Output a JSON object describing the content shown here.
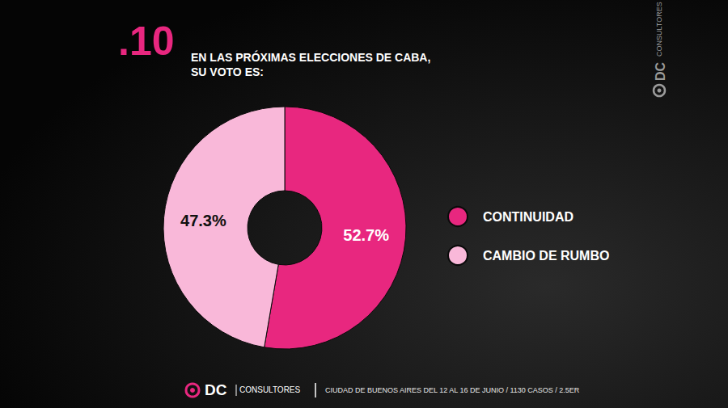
{
  "chart_data": {
    "type": "pie",
    "title": ".10",
    "subtitle": [
      "EN LAS PRÓXIMAS ELECCIONES DE CABA,",
      "SU VOTO ES:"
    ],
    "categories": [
      "CONTINUIDAD",
      "CAMBIO DE RUMBO"
    ],
    "values": [
      52.7,
      47.3
    ],
    "value_labels": [
      "52.7%",
      "47.3%"
    ],
    "colors": [
      "#e8277f",
      "#f9b8d9"
    ],
    "data_labels": true,
    "legend": "right"
  },
  "branding": {
    "logo": "DC",
    "name": "CONSULTORES",
    "footer": "CIUDAD DE BUENOS AIRES DEL 12 AL 16 DE JUNIO / 1130 CASOS / 2.5ER"
  }
}
